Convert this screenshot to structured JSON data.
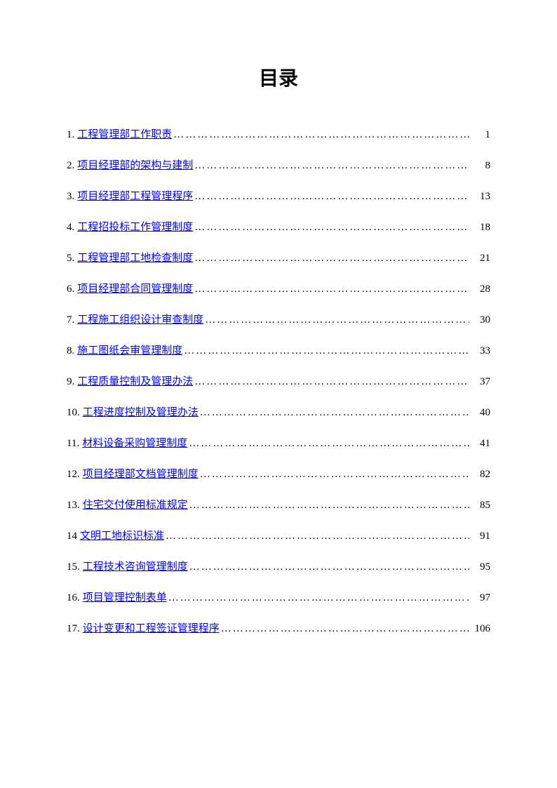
{
  "title": "目录",
  "entries": [
    {
      "num": "1. ",
      "label": "工程管理部工作职责",
      "page": "1"
    },
    {
      "num": "2. ",
      "label": "项目经理部的架构与建制",
      "page": "8"
    },
    {
      "num": "3.  ",
      "label": "项目经理部工程管理程序",
      "page": "13"
    },
    {
      "num": "4. ",
      "label": "工程招投标工作管理制度",
      "page": "18"
    },
    {
      "num": "5. ",
      "label": "工程管理部工地检查制度",
      "page": "21"
    },
    {
      "num": "6. ",
      "label": "项目经理部合同管理制度",
      "page": "28"
    },
    {
      "num": "7. ",
      "label": "工程施工组织设计审查制度",
      "page": "30"
    },
    {
      "num": "8. ",
      "label": "施工图纸会审管理制度",
      "page": "33"
    },
    {
      "num": "9. ",
      "label": "工程质量控制及管理办法",
      "page": "37"
    },
    {
      "num": "10.  ",
      "label": "工程进度控制及管理办法",
      "page": "40"
    },
    {
      "num": "11. ",
      "label": "材料设备采购管理制度",
      "page": "41"
    },
    {
      "num": "12. ",
      "label": "项目经理部文档管理制度",
      "page": "82"
    },
    {
      "num": "13. ",
      "label": "住宅交付使用标准规定",
      "page": "85"
    },
    {
      "num": "14 ",
      "label": "文明工地标识标准",
      "page": "91"
    },
    {
      "num": "15. ",
      "label": "工程技术咨询管理制度",
      "page": "95"
    },
    {
      "num": "16. ",
      "label": "项目管理控制表单",
      "page": "97"
    },
    {
      "num": "17.  ",
      "label": "设计变更和工程签证管理程序",
      "page": "106"
    }
  ],
  "dots": "…………………………………………………………………………………………………………",
  "colors": {
    "background": "#ffffff",
    "text": "#000000",
    "link": "#0000ee"
  },
  "typography": {
    "title_fontsize": 28,
    "title_weight": "bold",
    "entry_fontsize": 15,
    "title_font": "SimHei",
    "body_font": "SimSun"
  }
}
